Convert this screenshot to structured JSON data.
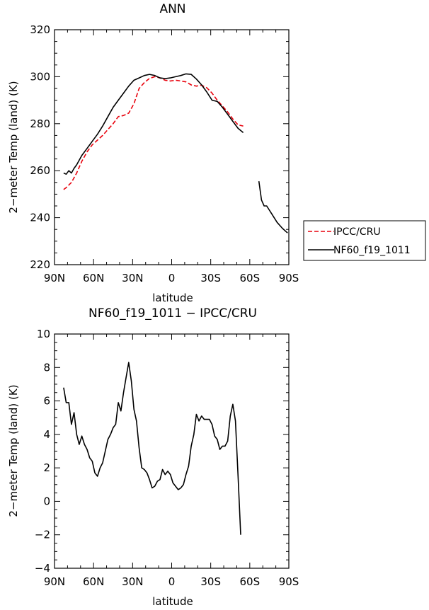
{
  "chart_data": [
    {
      "type": "line",
      "title": "ANN",
      "xlabel": "latitude",
      "ylabel": "2−meter Temp (land) (K)",
      "xlim": [
        90,
        -90
      ],
      "ylim": [
        220,
        320
      ],
      "xticks": [
        90,
        60,
        30,
        0,
        -30,
        -60,
        -90
      ],
      "xtick_labels": [
        "90N",
        "60N",
        "30N",
        "0",
        "30S",
        "60S",
        "90S"
      ],
      "yticks": [
        220,
        240,
        260,
        280,
        300,
        320
      ],
      "ytick_labels": [
        "220",
        "240",
        "260",
        "280",
        "300",
        "320"
      ],
      "legend_position": "right",
      "series": [
        {
          "name": "IPCC/CRU",
          "style": "dashed",
          "color": "#e8000b",
          "x": [
            83,
            81,
            77,
            73,
            69,
            65,
            61,
            57,
            53,
            49,
            45,
            41,
            37,
            33,
            29,
            25,
            21,
            17,
            13,
            9,
            5,
            1,
            -3,
            -7,
            -11,
            -15,
            -19,
            -23,
            -27,
            -31,
            -35,
            -39,
            -43,
            -47,
            -51,
            -55
          ],
          "y": [
            252,
            252.8,
            255,
            259,
            264,
            268,
            271,
            273,
            275,
            277.5,
            280,
            283,
            283.5,
            284.5,
            288.5,
            295,
            297.5,
            299.3,
            300,
            299.5,
            298.5,
            298.2,
            298.5,
            298.2,
            297.8,
            296.5,
            296,
            296.4,
            295.3,
            293,
            290,
            287.5,
            285,
            282,
            279.5,
            279
          ]
        },
        {
          "name": "NF60_f19_1011",
          "style": "solid",
          "color": "#000000",
          "x": [
            83,
            81,
            79,
            77,
            75,
            73,
            69,
            65,
            61,
            57,
            53,
            49,
            45,
            41,
            37,
            33,
            29,
            25,
            21,
            17,
            13,
            9,
            5,
            1,
            -3,
            -7,
            -11,
            -15,
            -19,
            -23,
            -27,
            -31,
            -35,
            -39,
            -43,
            -47,
            -51,
            -55,
            null,
            -67,
            -69,
            -71,
            -73,
            -77,
            -81,
            -85,
            -89
          ],
          "y": [
            259,
            258.5,
            260,
            259,
            261,
            262.5,
            266.5,
            269.5,
            272.5,
            275.5,
            279,
            283,
            287,
            290,
            293,
            296,
            298.5,
            299.5,
            300.5,
            301,
            300.5,
            299.5,
            299.2,
            299.5,
            300,
            300.5,
            301.2,
            301,
            299,
            296.5,
            293.5,
            290,
            289.5,
            287,
            284,
            281,
            278,
            276.2,
            null,
            255.5,
            247.5,
            245,
            245,
            241.5,
            238,
            235.5,
            233.5
          ]
        }
      ]
    },
    {
      "type": "line",
      "title": "NF60_f19_1011 − IPCC/CRU",
      "xlabel": "latitude",
      "ylabel": "2−meter Temp (land) (K)",
      "xlim": [
        90,
        -90
      ],
      "ylim": [
        -4,
        10
      ],
      "xticks": [
        90,
        60,
        30,
        0,
        -30,
        -60,
        -90
      ],
      "xtick_labels": [
        "90N",
        "60N",
        "30N",
        "0",
        "30S",
        "60S",
        "90S"
      ],
      "yticks": [
        -4,
        -2,
        0,
        2,
        4,
        6,
        8,
        10
      ],
      "ytick_labels": [
        "−4",
        "−2",
        "0",
        "2",
        "4",
        "6",
        "8",
        "10"
      ],
      "series": [
        {
          "name": "NF60_f19_1011 − IPCC/CRU",
          "style": "solid",
          "color": "#000000",
          "x": [
            83,
            81,
            79,
            77,
            75,
            73,
            71,
            69,
            67,
            65,
            63,
            61,
            59,
            57,
            55,
            53,
            51,
            49,
            47,
            45,
            43,
            41,
            39,
            37,
            35,
            33,
            31,
            29,
            27,
            25,
            23,
            21,
            19,
            17,
            15,
            13,
            11,
            9,
            7,
            5,
            3,
            1,
            -1,
            -3,
            -5,
            -7,
            -9,
            -11,
            -13,
            -15,
            -17,
            -19,
            -21,
            -23,
            -25,
            -27,
            -29,
            -31,
            -33,
            -35,
            -37,
            -39,
            -41,
            -43,
            -45,
            -47,
            -49,
            -51,
            -53
          ],
          "y": [
            6.8,
            5.9,
            5.9,
            4.6,
            5.3,
            4.0,
            3.4,
            3.9,
            3.4,
            3.1,
            2.6,
            2.4,
            1.7,
            1.5,
            2.0,
            2.3,
            3.0,
            3.7,
            4.0,
            4.4,
            4.6,
            5.9,
            5.4,
            6.5,
            7.4,
            8.3,
            7.2,
            5.5,
            4.8,
            3.2,
            2.0,
            1.9,
            1.7,
            1.3,
            0.8,
            0.9,
            1.2,
            1.3,
            1.9,
            1.6,
            1.8,
            1.6,
            1.1,
            0.9,
            0.7,
            0.8,
            1.0,
            1.6,
            2.1,
            3.3,
            4.0,
            5.2,
            4.8,
            5.1,
            4.9,
            4.9,
            4.9,
            4.6,
            3.9,
            3.7,
            3.1,
            3.3,
            3.3,
            3.6,
            5.1,
            5.8,
            4.8,
            1.5,
            -2.0
          ]
        }
      ]
    }
  ]
}
